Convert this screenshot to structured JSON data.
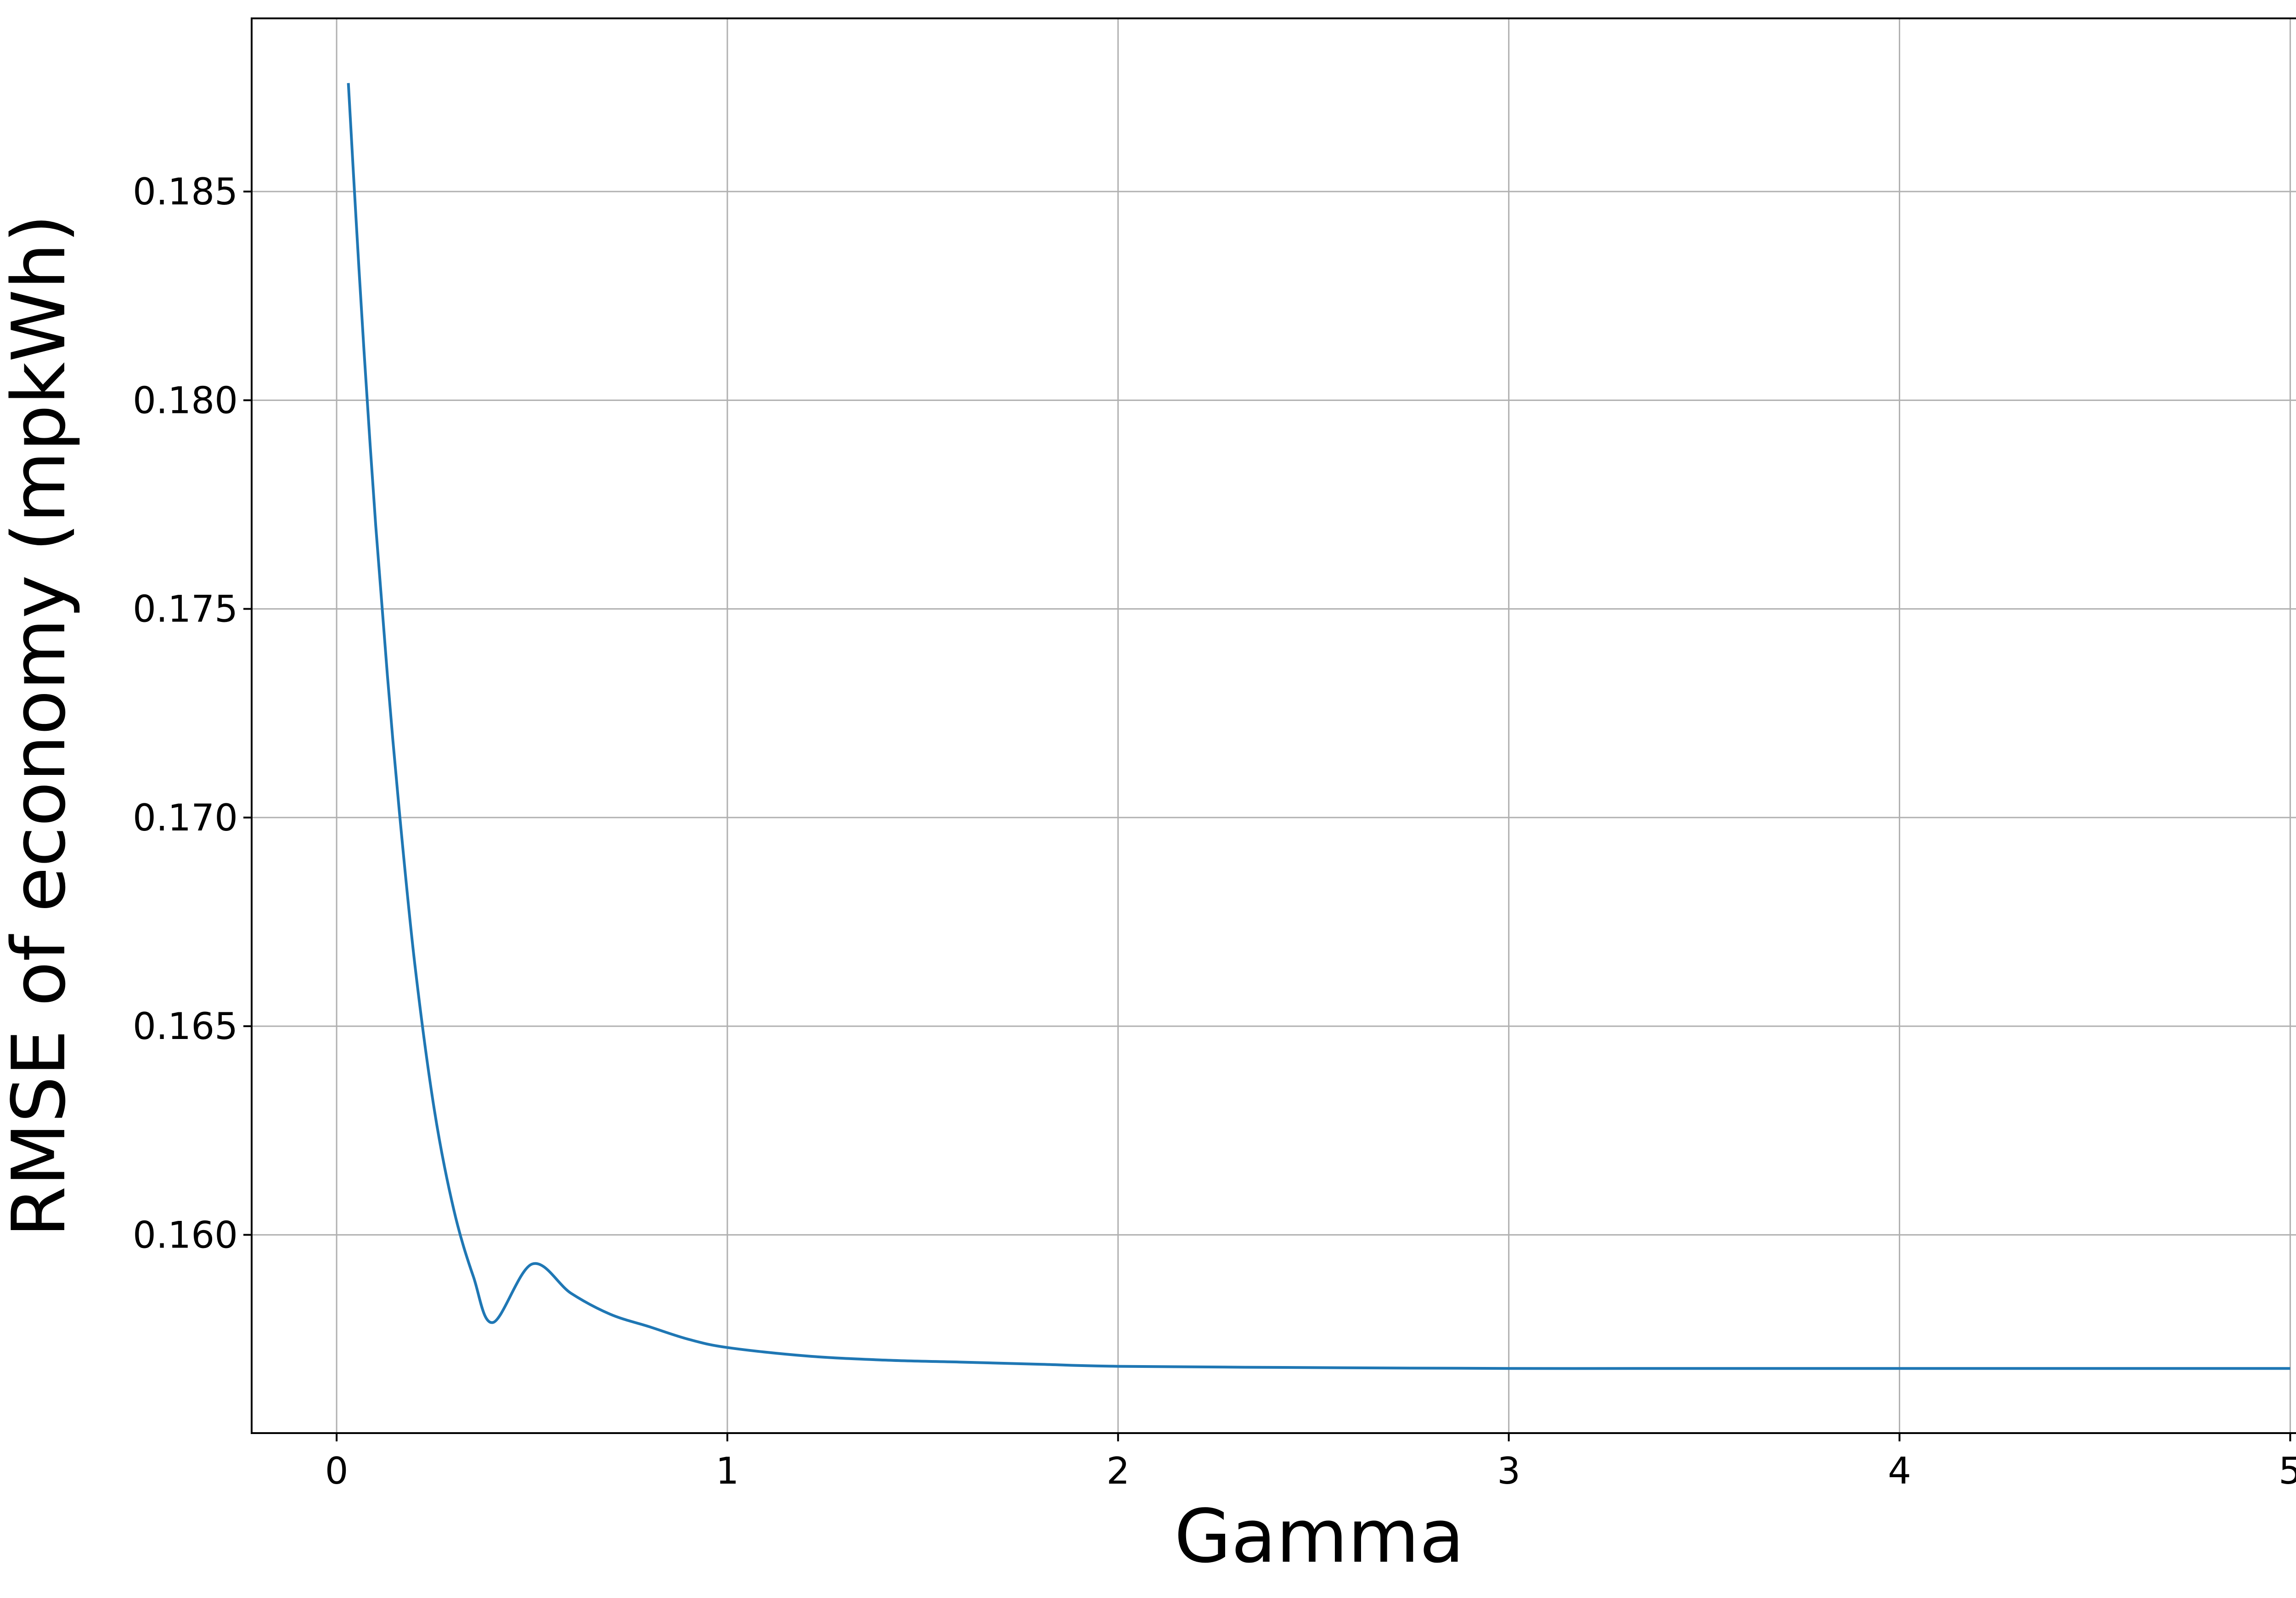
{
  "chart_data": {
    "type": "line",
    "title": "",
    "xlabel": "Gamma",
    "ylabel": "RMSE of economy (mpkWh)",
    "xlim": [
      -0.2175,
      5.2475
    ],
    "ylim": [
      0.15525,
      0.18915
    ],
    "x_ticks": [
      0,
      1,
      2,
      3,
      4,
      5
    ],
    "x_tick_labels": [
      "0",
      "1",
      "2",
      "3",
      "4",
      "5"
    ],
    "y_ticks": [
      0.16,
      0.165,
      0.17,
      0.175,
      0.18,
      0.185
    ],
    "y_tick_labels": [
      "0.160",
      "0.165",
      "0.170",
      "0.175",
      "0.180",
      "0.185"
    ],
    "grid": true,
    "legend": "none",
    "series_color": "#1f77b4",
    "series": [
      {
        "x": [
          0.03,
          0.05,
          0.07,
          0.1,
          0.13,
          0.16,
          0.2,
          0.25,
          0.3,
          0.35,
          0.4,
          0.5,
          0.6,
          0.7,
          0.8,
          0.9,
          1.0,
          1.2,
          1.4,
          1.6,
          1.8,
          2.0,
          2.5,
          3.0,
          3.5,
          4.0,
          4.5,
          5.0
        ],
        "y": [
          0.1876,
          0.1843,
          0.1812,
          0.177,
          0.1734,
          0.1702,
          0.1665,
          0.163,
          0.1606,
          0.159,
          0.1579,
          0.1593,
          0.1586,
          0.1581,
          0.1578,
          0.1575,
          0.1573,
          0.1571,
          0.157,
          0.15695,
          0.1569,
          0.15685,
          0.15682,
          0.1568,
          0.1568,
          0.1568,
          0.1568,
          0.1568
        ]
      }
    ]
  }
}
